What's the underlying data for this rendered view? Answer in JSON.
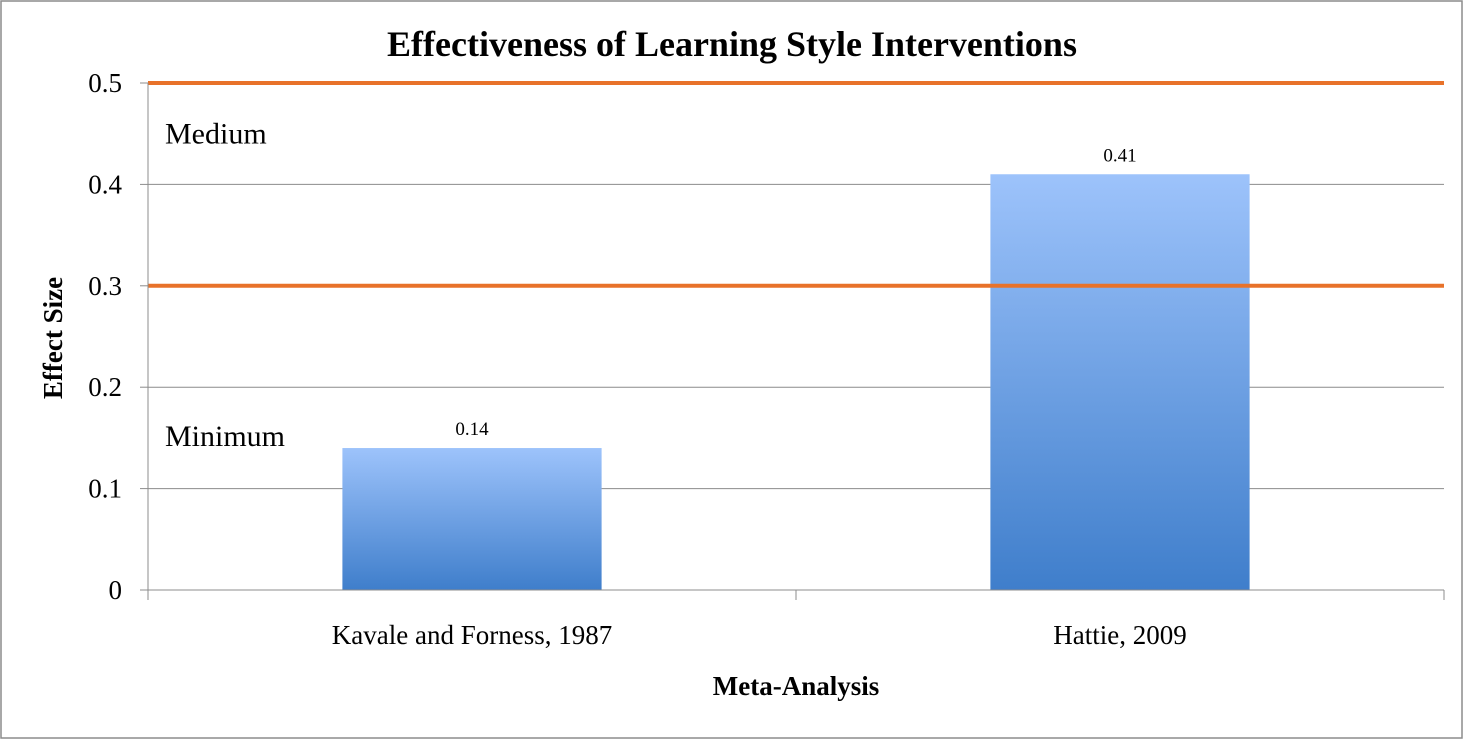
{
  "chart_data": {
    "type": "bar",
    "title": "Effectiveness of Learning Style Interventions",
    "xlabel": "Meta-Analysis",
    "ylabel": "Effect Size",
    "categories": [
      "Kavale and Forness, 1987",
      "Hattie, 2009"
    ],
    "values": [
      0.14,
      0.41
    ],
    "data_labels": [
      "0.14",
      "0.41"
    ],
    "ylim": [
      0,
      0.5
    ],
    "yticks": [
      0,
      0.1,
      0.2,
      0.3,
      0.4,
      0.5
    ],
    "ytick_labels": [
      "0",
      "0.1",
      "0.2",
      "0.3",
      "0.4",
      "0.5"
    ],
    "grid": true,
    "legend": "none",
    "reference_lines": [
      {
        "value": 0.3,
        "label": "Minimum",
        "color": "#E8722A"
      },
      {
        "value": 0.5,
        "label": "Medium",
        "color": "#E8722A"
      }
    ],
    "bar_color_top": "#9DC3FB",
    "bar_color_bottom": "#3F7ECB"
  }
}
